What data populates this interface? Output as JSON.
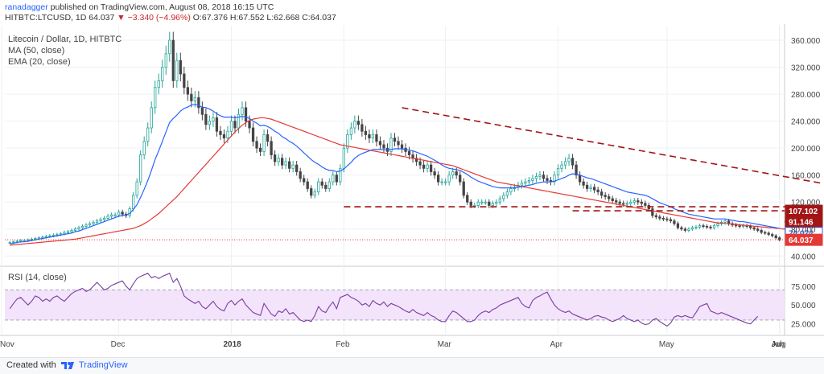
{
  "header": {
    "author": "ranadagger",
    "published": "published on TradingView.com, August 08, 2018 16:15 UTC",
    "symbol": "HITBTC:LTCUSD, 1D",
    "last": "64.037",
    "change": "▼ −3.340 (−4.96%)",
    "ohlc": "O:67.376 H:67.552 L:62.668 C:64.037"
  },
  "footer": {
    "created_with": "Created with",
    "brand": "TradingView"
  },
  "colors": {
    "up": "#26a69a",
    "down": "#444444",
    "ma50": "#e53935",
    "ema20": "#2962ff",
    "trend": "#a31515",
    "rsi": "#7b3fa0",
    "rsi_band": "#f3e3fb"
  },
  "chart_data": [
    {
      "type": "candlestick",
      "title": "Litecoin / Dollar, 1D, HITBTC",
      "legend": [
        "MA (50, close)",
        "EMA (20, close)"
      ],
      "legend_position": "top-left",
      "x_ticks": [
        "Nov",
        "Dec",
        "2018",
        "Feb",
        "Mar",
        "Apr",
        "May",
        "Jun",
        "Jul",
        "Aug"
      ],
      "y_ticks": [
        40,
        80,
        120,
        160,
        200,
        240,
        280,
        320,
        360
      ],
      "ylim": [
        32,
        372
      ],
      "closes": [
        60,
        61,
        62,
        63,
        63,
        64,
        65,
        66,
        67,
        68,
        69,
        70,
        71,
        72,
        73,
        75,
        76,
        78,
        80,
        82,
        84,
        86,
        88,
        90,
        92,
        94,
        96,
        99,
        101,
        101,
        105,
        102,
        100,
        110,
        130,
        150,
        190,
        210,
        230,
        260,
        290,
        300,
        320,
        340,
        360,
        300,
        330,
        310,
        290,
        280,
        270,
        275,
        260,
        250,
        235,
        240,
        245,
        225,
        220,
        215,
        225,
        240,
        230,
        250,
        260,
        240,
        230,
        210,
        200,
        195,
        220,
        210,
        190,
        180,
        185,
        175,
        180,
        170,
        175,
        165,
        155,
        150,
        140,
        130,
        135,
        150,
        145,
        140,
        150,
        160,
        150,
        170,
        200,
        220,
        230,
        240,
        235,
        225,
        220,
        215,
        220,
        210,
        205,
        200,
        195,
        215,
        210,
        205,
        200,
        195,
        190,
        185,
        180,
        175,
        170,
        175,
        165,
        160,
        150,
        150,
        150,
        160,
        165,
        160,
        150,
        130,
        120,
        115,
        115,
        120,
        120,
        120,
        115,
        118,
        120,
        125,
        130,
        135,
        140,
        142,
        145,
        148,
        150,
        152,
        155,
        158,
        160,
        155,
        152,
        150,
        160,
        170,
        175,
        180,
        185,
        175,
        160,
        150,
        145,
        140,
        142,
        138,
        135,
        130,
        128,
        125,
        122,
        120,
        118,
        117,
        118,
        120,
        122,
        120,
        118,
        115,
        110,
        100,
        98,
        96,
        95,
        94,
        92,
        88,
        82,
        80,
        78,
        80,
        82,
        83,
        85,
        84,
        83,
        82,
        85,
        88,
        90,
        92,
        88,
        86,
        85,
        84,
        85,
        84,
        82,
        80,
        78,
        75,
        74,
        72,
        70,
        67,
        64
      ],
      "series": [
        {
          "name": "MA (50, close)",
          "values": [
            56,
            56.5,
            57,
            57.5,
            58,
            58.5,
            59,
            59.5,
            60,
            60.5,
            61,
            61.5,
            62,
            62.5,
            63,
            63.5,
            64,
            64.5,
            65,
            66,
            67,
            68,
            69,
            70,
            71,
            72,
            73,
            74,
            75,
            76,
            77,
            78,
            79,
            80,
            81,
            83,
            85,
            88,
            91,
            95,
            99,
            103,
            108,
            113,
            118,
            123,
            128,
            134,
            140,
            146,
            152,
            158,
            164,
            170,
            176,
            182,
            188,
            194,
            200,
            206,
            212,
            218,
            224,
            229,
            234,
            238,
            241,
            243,
            244,
            245,
            245,
            244,
            243,
            241,
            239,
            237,
            235,
            233,
            231,
            229,
            227,
            225,
            223,
            221,
            219,
            217,
            215,
            213,
            211,
            209,
            207,
            205,
            204,
            203,
            202,
            201,
            200,
            199,
            198,
            197,
            196,
            195,
            194,
            193,
            192,
            191,
            190,
            189,
            188,
            187,
            186,
            185,
            184,
            183,
            182,
            181,
            180,
            179,
            178,
            177,
            176,
            175,
            174,
            172,
            170,
            168,
            166,
            164,
            162,
            160,
            158,
            156,
            154,
            152,
            150,
            149,
            148,
            147,
            146,
            145,
            144,
            143,
            142,
            141,
            140,
            139,
            138,
            137,
            136,
            135,
            134,
            133,
            132,
            131,
            130,
            129,
            128,
            127,
            126,
            125,
            124,
            123,
            122,
            121,
            120,
            119,
            118,
            117,
            116,
            115,
            114,
            113,
            112,
            111,
            110,
            109,
            108,
            107,
            106,
            105,
            104,
            103,
            102,
            101,
            100,
            99,
            98,
            97,
            96,
            95,
            94,
            93,
            92,
            91,
            90,
            89,
            89,
            88,
            88,
            87,
            87,
            86,
            86,
            85,
            85,
            84,
            84,
            83,
            83,
            82,
            82,
            81,
            81,
            80,
            80,
            79
          ]
        },
        {
          "name": "EMA (20, close)",
          "values": [
            58,
            59,
            60,
            61,
            61,
            62,
            63,
            64,
            65,
            66,
            67,
            68,
            69,
            70,
            71,
            72,
            73,
            74,
            76,
            77,
            79,
            81,
            83,
            85,
            87,
            89,
            91,
            93,
            95,
            97,
            99,
            100,
            101,
            103,
            109,
            116,
            127,
            139,
            152,
            167,
            183,
            196,
            210,
            224,
            238,
            244,
            249,
            255,
            259,
            261,
            264,
            265,
            263,
            261,
            260,
            258,
            255,
            251,
            248,
            246,
            246,
            246,
            245,
            246,
            247,
            246,
            244,
            240,
            237,
            233,
            234,
            232,
            229,
            225,
            222,
            217,
            214,
            210,
            207,
            203,
            198,
            193,
            188,
            183,
            179,
            176,
            172,
            169,
            167,
            167,
            165,
            166,
            169,
            174,
            179,
            185,
            189,
            192,
            194,
            196,
            198,
            198,
            198,
            198,
            197,
            198,
            199,
            199,
            199,
            198,
            197,
            196,
            194,
            192,
            190,
            188,
            185,
            182,
            179,
            175,
            172,
            170,
            169,
            168,
            167,
            164,
            161,
            157,
            154,
            151,
            149,
            147,
            145,
            143,
            142,
            141,
            141,
            141,
            141,
            141,
            142,
            143,
            144,
            145,
            146,
            148,
            149,
            150,
            150,
            150,
            151,
            153,
            155,
            157,
            160,
            162,
            161,
            160,
            158,
            156,
            155,
            153,
            151,
            149,
            147,
            145,
            143,
            141,
            139,
            137,
            135,
            134,
            133,
            132,
            131,
            130,
            128,
            125,
            122,
            119,
            117,
            115,
            113,
            110,
            108,
            106,
            104,
            102,
            101,
            100,
            99,
            98,
            97,
            96,
            95,
            95,
            95,
            95,
            94,
            93,
            92,
            91,
            91,
            90,
            89,
            88,
            87,
            86,
            85,
            84,
            83,
            82,
            81
          ]
        }
      ],
      "horizontal_levels": [
        {
          "label": "107.102",
          "value": 107.102,
          "color": "#a31515"
        },
        {
          "label": "91.146",
          "value": 91.146,
          "color": "#a31515"
        },
        {
          "label": "74.074",
          "value": 74.074,
          "color": "#2962ff"
        },
        {
          "label": "64.037",
          "value": 64.037,
          "color": "#e53935"
        }
      ],
      "trendline": {
        "start": {
          "month": "Feb",
          "value": 260
        },
        "end": {
          "month": "Aug",
          "value": 100
        }
      }
    },
    {
      "type": "line",
      "title": "RSI (14, close)",
      "y_ticks": [
        25,
        50,
        75
      ],
      "y_tick_labels": [
        "25.000",
        "50.000",
        "75.000"
      ],
      "band": [
        30,
        70
      ],
      "ylim": [
        15,
        95
      ],
      "series": [
        {
          "name": "RSI (14, close)",
          "values": [
            45,
            52,
            58,
            60,
            55,
            50,
            55,
            62,
            60,
            55,
            58,
            55,
            60,
            62,
            58,
            55,
            60,
            65,
            68,
            70,
            72,
            68,
            70,
            75,
            80,
            75,
            70,
            72,
            76,
            78,
            80,
            82,
            75,
            70,
            78,
            85,
            88,
            90,
            92,
            86,
            88,
            85,
            88,
            90,
            92,
            80,
            85,
            75,
            62,
            58,
            55,
            52,
            55,
            48,
            45,
            50,
            55,
            48,
            44,
            42,
            52,
            56,
            50,
            55,
            58,
            50,
            45,
            40,
            38,
            36,
            52,
            45,
            38,
            35,
            42,
            40,
            45,
            38,
            40,
            35,
            30,
            28,
            30,
            28,
            36,
            48,
            42,
            40,
            48,
            54,
            45,
            60,
            62,
            64,
            60,
            58,
            55,
            50,
            52,
            48,
            56,
            52,
            50,
            54,
            48,
            52,
            50,
            48,
            45,
            42,
            40,
            44,
            40,
            38,
            36,
            40,
            36,
            34,
            30,
            28,
            28,
            36,
            42,
            40,
            36,
            32,
            28,
            28,
            30,
            36,
            40,
            42,
            40,
            44,
            46,
            50,
            52,
            54,
            56,
            58,
            60,
            52,
            48,
            46,
            56,
            60,
            62,
            65,
            67,
            58,
            50,
            45,
            42,
            40,
            42,
            38,
            36,
            34,
            32,
            30,
            32,
            35,
            36,
            34,
            33,
            30,
            28,
            30,
            32,
            36,
            32,
            30,
            28,
            30,
            26,
            24,
            25,
            30,
            32,
            28,
            25,
            22,
            26,
            34,
            36,
            34,
            36,
            34,
            33,
            40,
            48,
            50,
            52,
            42,
            40,
            38,
            40,
            38,
            36,
            34,
            32,
            30,
            28,
            26,
            25,
            30,
            35
          ]
        }
      ]
    }
  ]
}
